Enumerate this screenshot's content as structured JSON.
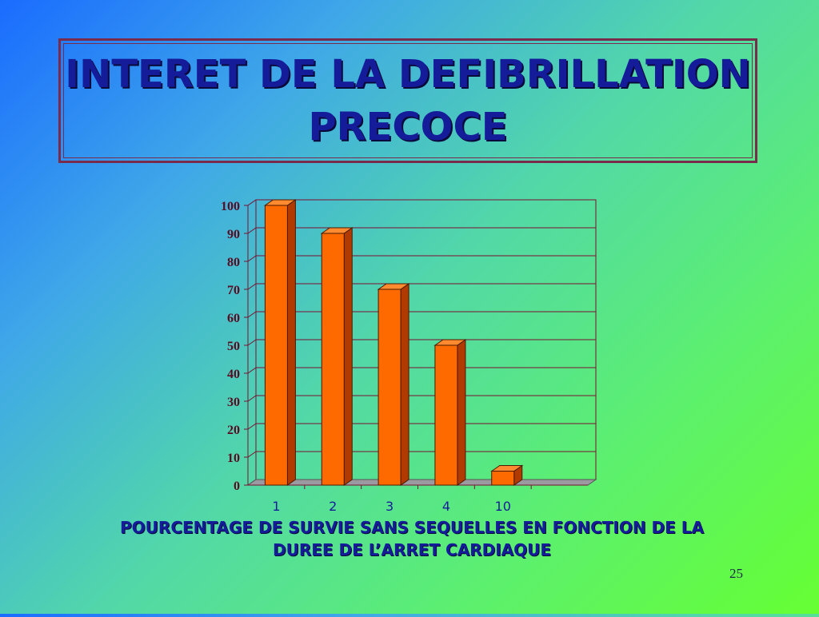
{
  "slide": {
    "title": "INTERET DE LA DEFIBRILLATION PRECOCE",
    "caption": "POURCENTAGE DE SURVIE SANS SEQUELLES  EN FONCTION DE LA DUREE DE L’ARRET CARDIAQUE",
    "page_number": "25"
  },
  "chart_data": {
    "type": "bar",
    "categories": [
      "1",
      "2",
      "3",
      "4",
      "10"
    ],
    "values": [
      100,
      90,
      70,
      50,
      5
    ],
    "title": "",
    "xlabel": "",
    "ylabel": "",
    "ylim": [
      0,
      100
    ],
    "yticks": [
      0,
      10,
      20,
      30,
      40,
      50,
      60,
      70,
      80,
      90,
      100
    ],
    "grid": true,
    "legend": "none",
    "bar_color": "#ff6a00",
    "bar_side_color": "#b03a00",
    "bar_top_color": "#ff8a30",
    "axis_color": "#7a1030",
    "tick_label_color": "#5a0a20",
    "category_label_color": "#141c9a"
  }
}
